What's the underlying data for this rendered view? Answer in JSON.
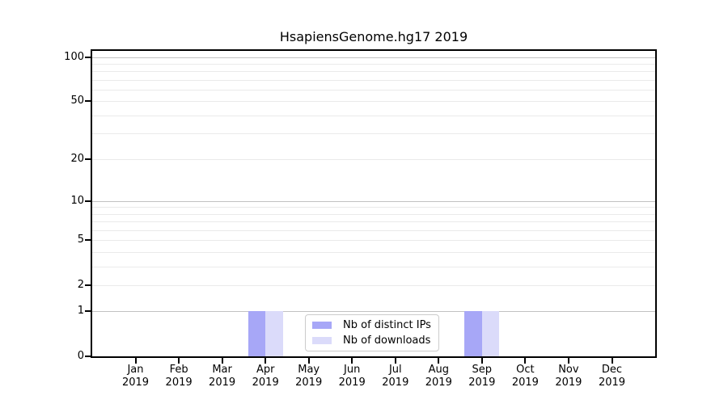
{
  "chart_data": {
    "type": "bar",
    "title": "HsapiensGenome.hg17 2019",
    "categories": [
      "Jan",
      "Feb",
      "Mar",
      "Apr",
      "May",
      "Jun",
      "Jul",
      "Aug",
      "Sep",
      "Oct",
      "Nov",
      "Dec"
    ],
    "x_sublabel": "2019",
    "series": [
      {
        "name": "Nb of distinct IPs",
        "color": "#a7a7f7",
        "values": [
          0,
          0,
          0,
          1,
          0,
          0,
          0,
          0,
          1,
          0,
          0,
          0
        ]
      },
      {
        "name": "Nb of downloads",
        "color": "#dbdbfa",
        "values": [
          0,
          0,
          0,
          1,
          0,
          0,
          0,
          0,
          1,
          0,
          0,
          0
        ]
      }
    ],
    "y_axis": {
      "scale": "log10(1+v)",
      "tick_labels": [
        0,
        1,
        2,
        5,
        10,
        20,
        50,
        100
      ],
      "major_gridlines": [
        1,
        10,
        100
      ],
      "minor_gridlines": [
        2,
        3,
        4,
        5,
        6,
        7,
        8,
        9,
        20,
        30,
        40,
        50,
        60,
        70,
        80,
        90
      ],
      "ylim": [
        0,
        110
      ],
      "grid": "on"
    },
    "legend": {
      "position": "inside lower center"
    }
  }
}
